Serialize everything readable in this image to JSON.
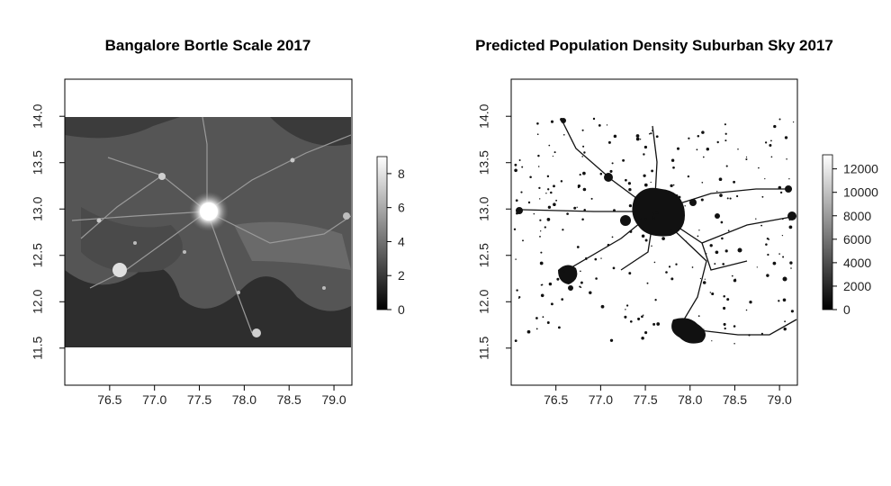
{
  "chart_data": [
    {
      "type": "heatmap",
      "title": "Bangalore Bortle Scale 2017",
      "xlabel": "",
      "ylabel": "",
      "xlim": [
        76.0,
        79.2
      ],
      "ylim": [
        11.1,
        14.4
      ],
      "x_ticks": [
        "76.5",
        "77.0",
        "77.5",
        "78.0",
        "78.5",
        "79.0"
      ],
      "y_ticks": [
        "11.5",
        "12.0",
        "12.5",
        "13.0",
        "13.5",
        "14.0"
      ],
      "data_extent": {
        "x": [
          76.0,
          79.2
        ],
        "y": [
          11.5,
          14.0
        ]
      },
      "colorscale": "grayscale",
      "legend": {
        "range": [
          0,
          9
        ],
        "ticks": [
          "0",
          "2",
          "4",
          "6",
          "8"
        ]
      }
    },
    {
      "type": "heatmap",
      "title": "Predicted Population Density Suburban Sky 2017",
      "xlabel": "",
      "ylabel": "",
      "xlim": [
        76.0,
        79.2
      ],
      "ylim": [
        11.1,
        14.4
      ],
      "x_ticks": [
        "76.5",
        "77.0",
        "77.5",
        "78.0",
        "78.5",
        "79.0"
      ],
      "y_ticks": [
        "11.5",
        "12.0",
        "12.5",
        "13.0",
        "13.5",
        "14.0"
      ],
      "data_extent": {
        "x": [
          76.0,
          79.2
        ],
        "y": [
          11.5,
          14.0
        ]
      },
      "colorscale": "grayscale",
      "legend": {
        "range": [
          0,
          13200
        ],
        "ticks": [
          "0",
          "2000",
          "4000",
          "6000",
          "8000",
          "10000",
          "12000"
        ]
      }
    }
  ]
}
